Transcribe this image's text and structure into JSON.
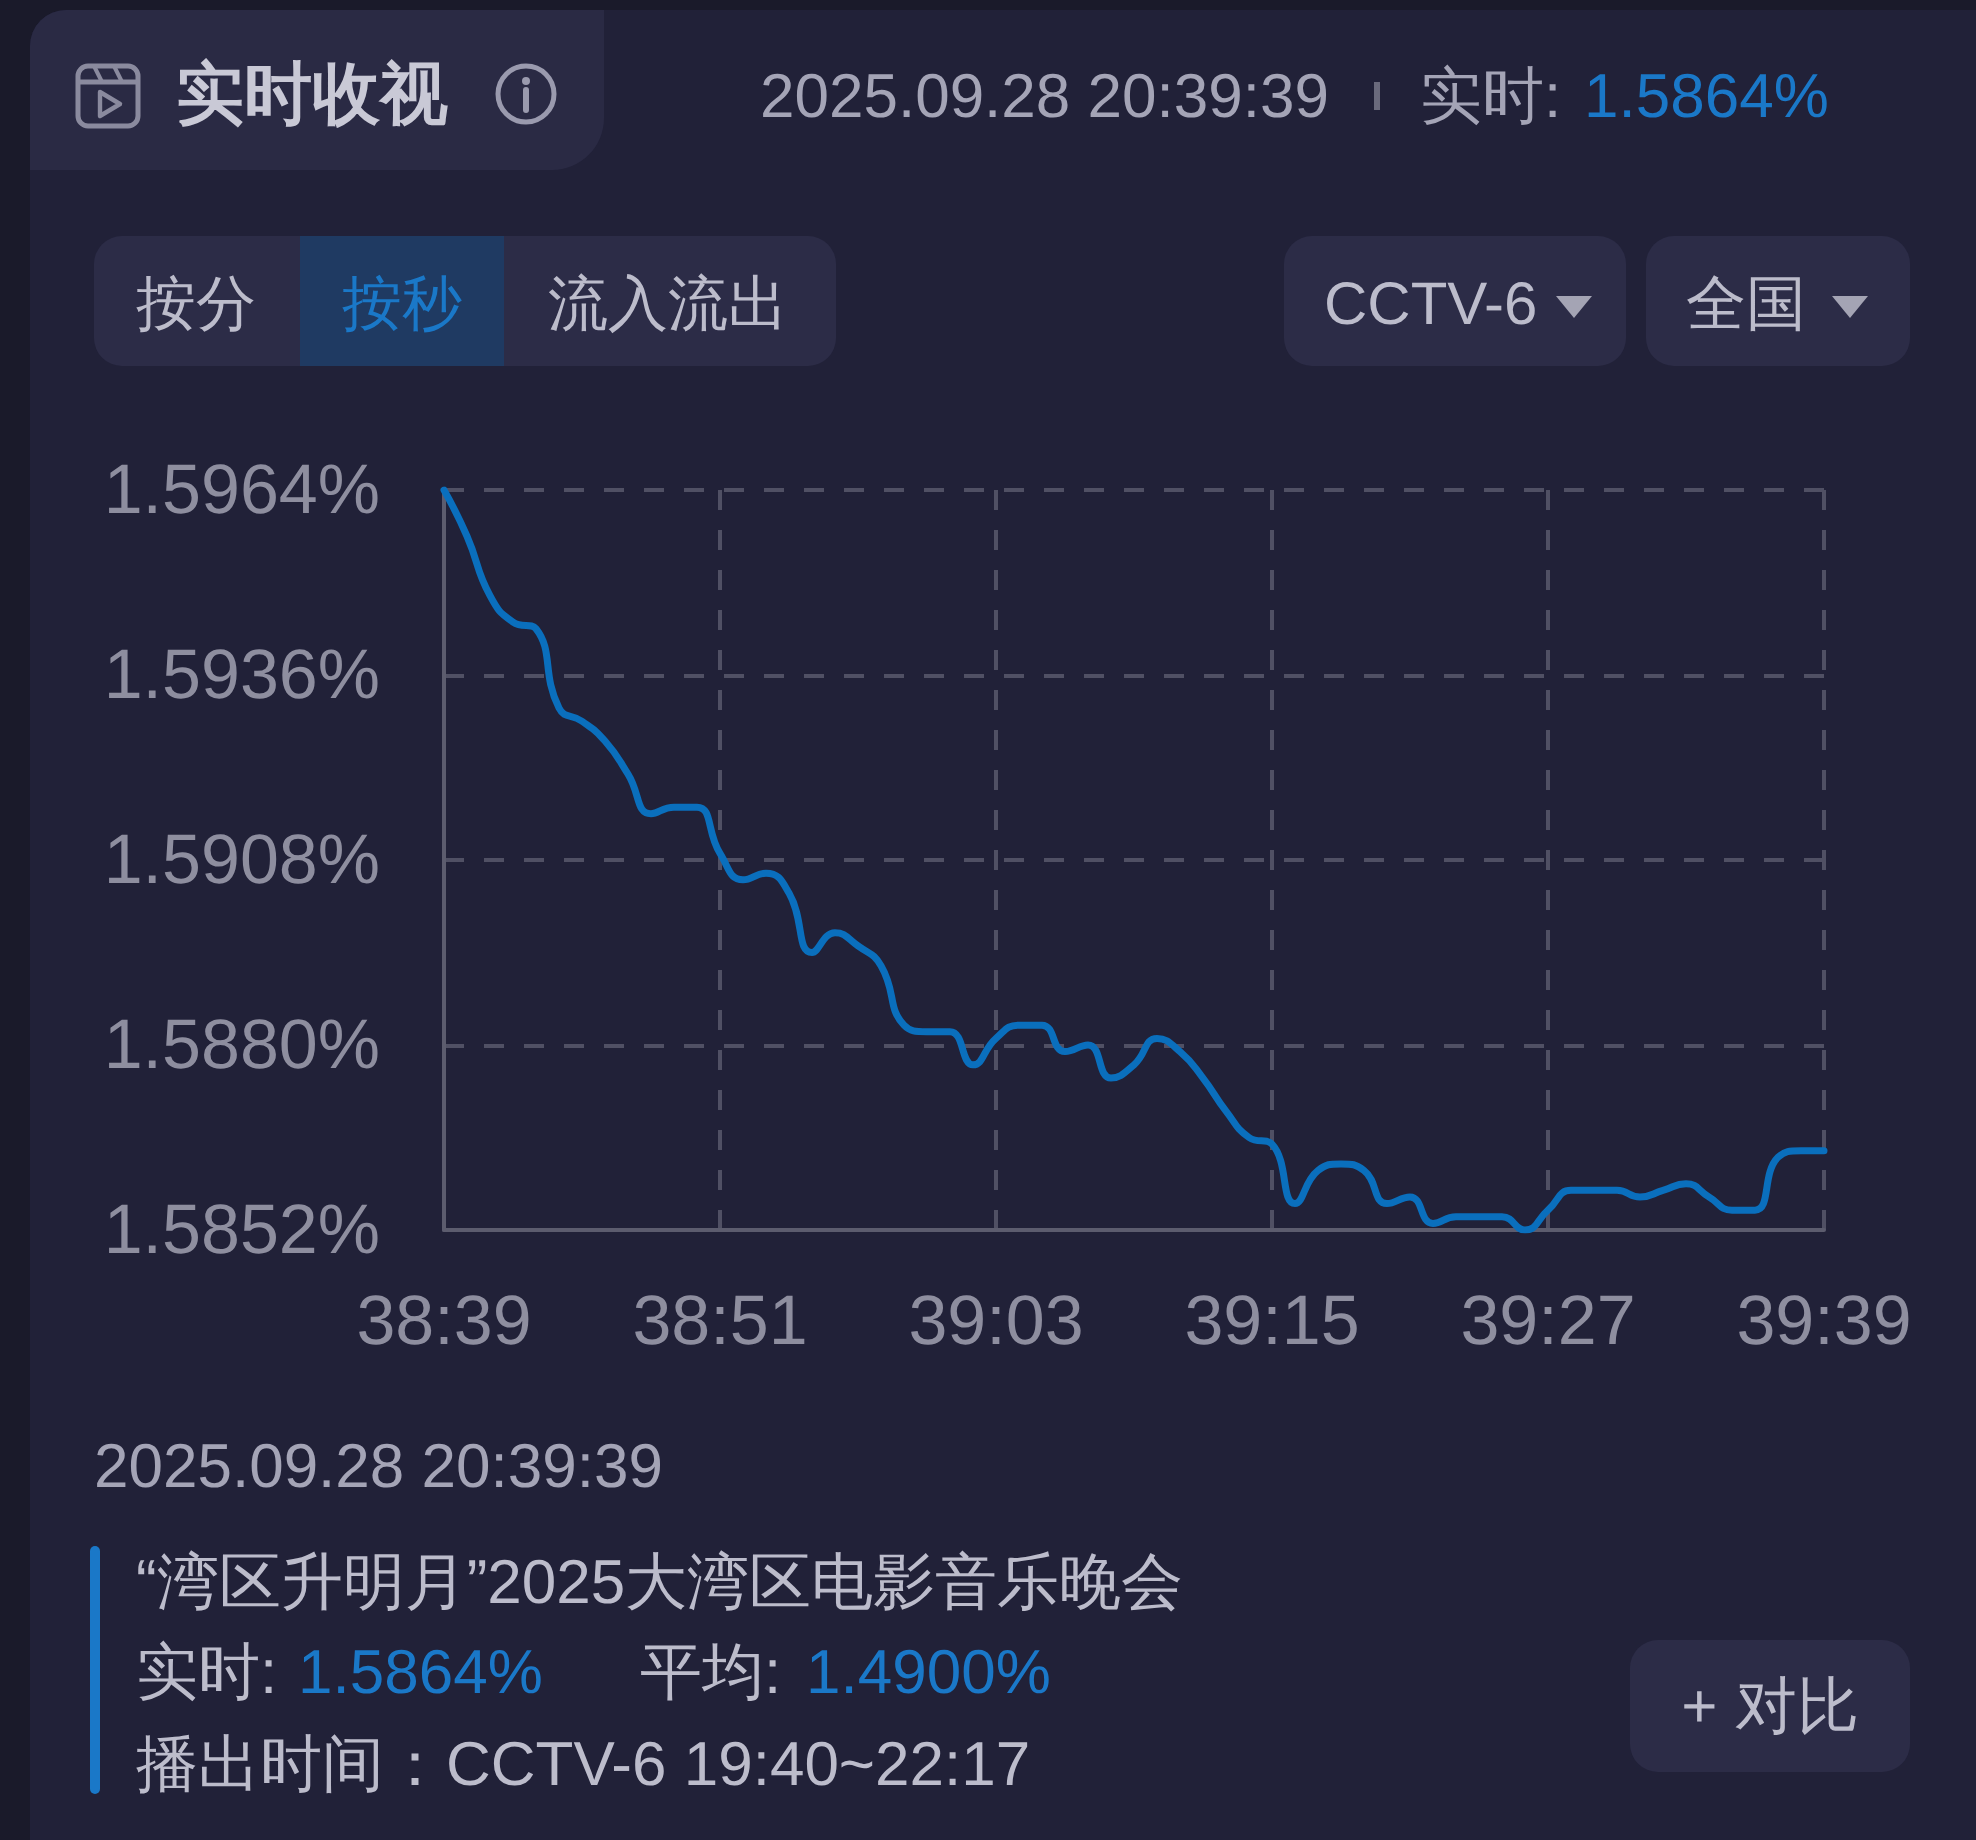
{
  "chart_data": {
    "type": "line",
    "title": "实时收视",
    "x": [
      2319,
      2320,
      2321,
      2322,
      2323,
      2324,
      2325,
      2326,
      2327,
      2328,
      2329,
      2330,
      2331,
      2332,
      2333,
      2334,
      2335,
      2336,
      2337,
      2338,
      2339,
      2340,
      2341,
      2342,
      2343,
      2344,
      2345,
      2346,
      2347,
      2348,
      2349,
      2350,
      2351,
      2352,
      2353,
      2354,
      2355,
      2356,
      2357,
      2358,
      2359,
      2360,
      2361,
      2362,
      2363,
      2364,
      2365,
      2366,
      2367,
      2368,
      2369,
      2370,
      2371,
      2372,
      2373,
      2374,
      2375,
      2376,
      2377,
      2378,
      2379
    ],
    "series": [
      {
        "color": "#0a6fbd",
        "values": [
          1.5964,
          1.5957,
          1.5948,
          1.5944,
          1.5943,
          1.5931,
          1.5929,
          1.5926,
          1.5921,
          1.5915,
          1.5916,
          1.5916,
          1.5909,
          1.5905,
          1.5906,
          1.5903,
          1.5894,
          1.5897,
          1.5895,
          1.5892,
          1.5883,
          1.5882,
          1.5882,
          1.5877,
          1.5881,
          1.5883,
          1.5883,
          1.5879,
          1.588,
          1.5875,
          1.5877,
          1.5881,
          1.5879,
          1.5875,
          1.587,
          1.5866,
          1.5865,
          1.5856,
          1.5861,
          1.5862,
          1.5861,
          1.5856,
          1.5857,
          1.5853,
          1.5854,
          1.5854,
          1.5854,
          1.5852,
          1.5855,
          1.5858,
          1.5858,
          1.5858,
          1.5857,
          1.5858,
          1.5859,
          1.5857,
          1.5855,
          1.5855,
          1.5863,
          1.5864,
          1.5864
        ]
      }
    ],
    "xlim": [
      2319,
      2379
    ],
    "xticks": [
      {
        "value": 2319,
        "label": "38:39"
      },
      {
        "value": 2331,
        "label": "38:51"
      },
      {
        "value": 2343,
        "label": "39:03"
      },
      {
        "value": 2355,
        "label": "39:15"
      },
      {
        "value": 2367,
        "label": "39:27"
      },
      {
        "value": 2379,
        "label": "39:39"
      }
    ],
    "ylim": [
      1.5852,
      1.5964
    ],
    "yticks": [
      {
        "value": 1.5852,
        "label": "1.5852%"
      },
      {
        "value": 1.588,
        "label": "1.5880%"
      },
      {
        "value": 1.5908,
        "label": "1.5908%"
      },
      {
        "value": 1.5936,
        "label": "1.5936%"
      },
      {
        "value": 1.5964,
        "label": "1.5964%"
      }
    ],
    "grid": true,
    "marker": "none",
    "line_style": "solid",
    "annotations": [
      "2025.09.28 20:39:39",
      "实时:",
      "1.5864%",
      "按分",
      "按秒",
      "流入流出",
      "CCTV-6",
      "全国",
      "2025.09.28 20:39:39",
      "“湾区升明月”2025大湾区电影音乐晚会",
      "实时:",
      "1.5864%",
      "平均:",
      "1.4900%",
      "播出时间：CCTV-6 19:40~22:17",
      "+ 对比"
    ]
  }
}
